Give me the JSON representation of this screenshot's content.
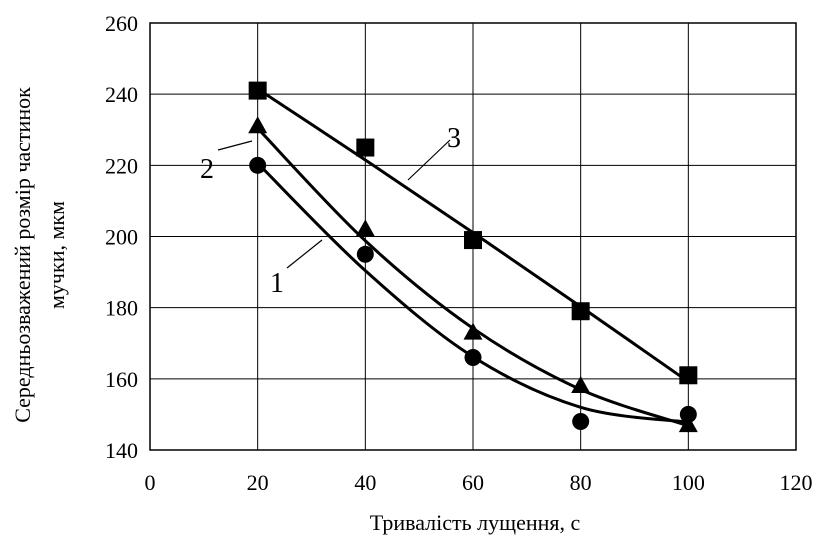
{
  "chart_data": {
    "type": "scatter",
    "xlabel": "Тривалість лущення, с",
    "ylabel_lines": [
      "Середньозважений розмір частинок",
      "мучки, мкм"
    ],
    "xlim": [
      0,
      120
    ],
    "ylim": [
      140,
      260
    ],
    "xticks": [
      0,
      20,
      40,
      60,
      80,
      100,
      120
    ],
    "yticks": [
      140,
      160,
      180,
      200,
      220,
      240,
      260
    ],
    "grid": true,
    "series": [
      {
        "name": "1",
        "marker": "circle",
        "x": [
          20,
          40,
          60,
          80,
          100
        ],
        "y": [
          220,
          195,
          166,
          148,
          150
        ],
        "trend_x": [
          20,
          40,
          60,
          80,
          100
        ],
        "trend_y": [
          220.6,
          190.4,
          166.2,
          152.0,
          147.8
        ]
      },
      {
        "name": "2",
        "marker": "triangle",
        "x": [
          20,
          40,
          60,
          80,
          100
        ],
        "y": [
          231,
          202,
          173,
          158,
          147
        ],
        "trend_x": [
          20,
          40,
          60,
          80,
          100
        ],
        "trend_y": [
          230.4,
          198.8,
          174.2,
          157.0,
          146.8
        ]
      },
      {
        "name": "3",
        "marker": "square",
        "x": [
          20,
          40,
          60,
          80,
          100
        ],
        "y": [
          241,
          225,
          199,
          179,
          161
        ],
        "trend_x": [
          20,
          40,
          60,
          80,
          100
        ],
        "trend_y": [
          241.5,
          221.5,
          201.1,
          180.3,
          159.2
        ]
      }
    ]
  }
}
